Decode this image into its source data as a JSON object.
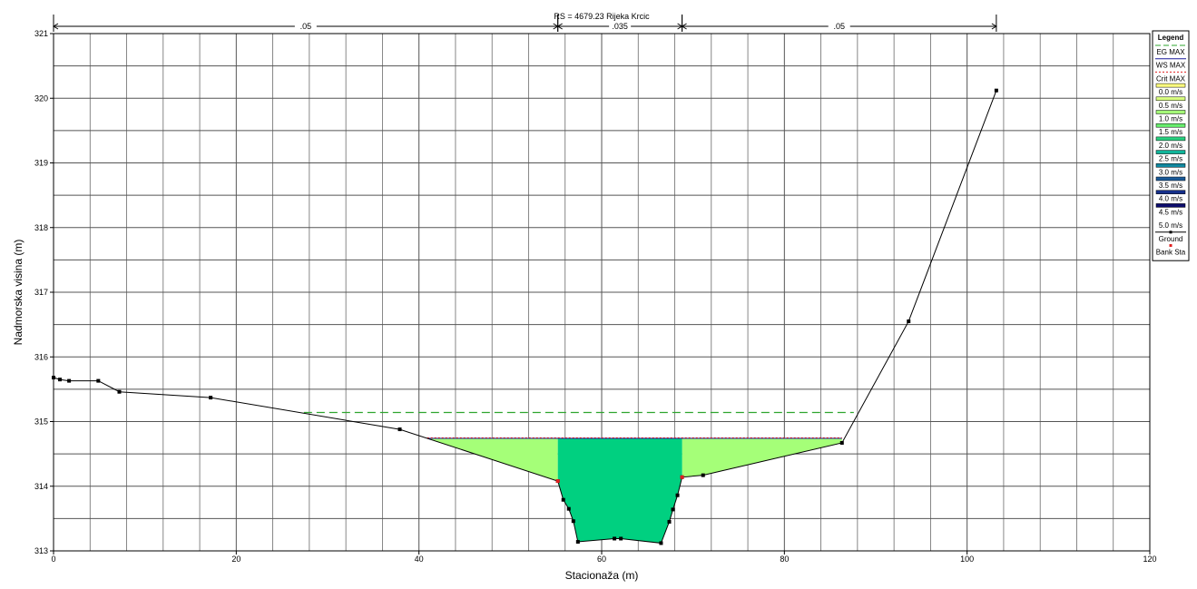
{
  "header": {
    "title": "RS = 4679.23   Rijeka Krcic",
    "mannings": [
      {
        "label": ".05",
        "from": 0,
        "to": 55.2
      },
      {
        "label": ".035",
        "from": 55.2,
        "to": 68.8
      },
      {
        "label": ".05",
        "from": 68.8,
        "to": 103.2
      }
    ]
  },
  "legend": {
    "title": "Legend",
    "items": [
      {
        "label": "EG MAX",
        "kind": "line",
        "color": "#2fa52f",
        "dash": "6,3"
      },
      {
        "label": "WS MAX",
        "kind": "line",
        "color": "#1a1a9a",
        "dash": ""
      },
      {
        "label": "Crit MAX",
        "kind": "line",
        "color": "#e02020",
        "dash": "2,2"
      },
      {
        "label": "0.0 m/s",
        "kind": "swatch",
        "color": "#ffff80"
      },
      {
        "label": "0.5 m/s",
        "kind": "swatch",
        "color": "#d9ff80"
      },
      {
        "label": "1.0 m/s",
        "kind": "swatch",
        "color": "#a5ff78"
      },
      {
        "label": "1.5 m/s",
        "kind": "swatch",
        "color": "#68ee6e"
      },
      {
        "label": "2.0 m/s",
        "kind": "swatch",
        "color": "#28d080"
      },
      {
        "label": "2.5 m/s",
        "kind": "swatch",
        "color": "#10b59a"
      },
      {
        "label": "3.0 m/s",
        "kind": "swatch",
        "color": "#1088a0"
      },
      {
        "label": "3.5 m/s",
        "kind": "swatch",
        "color": "#1a5a98"
      },
      {
        "label": "4.0 m/s",
        "kind": "swatch",
        "color": "#16308a"
      },
      {
        "label": "4.5 m/s",
        "kind": "swatch",
        "color": "#0c0c6c"
      },
      {
        "label": "5.0 m/s",
        "kind": "swatch",
        "color": ""
      },
      {
        "label": "Ground",
        "kind": "ground",
        "color": "#000000"
      },
      {
        "label": "Bank Sta",
        "kind": "bank",
        "color": "#e02020"
      }
    ]
  },
  "chart_data": {
    "type": "line",
    "xlabel": "Stacionaža (m)",
    "ylabel": "Nadmorska visina (m)",
    "xlim": [
      0,
      120
    ],
    "ylim": [
      313,
      321
    ],
    "xticks": [
      0,
      20,
      40,
      60,
      80,
      100,
      120
    ],
    "yticks": [
      313,
      314,
      315,
      316,
      317,
      318,
      319,
      320,
      321
    ],
    "grid": true,
    "legend_position": "right",
    "ground": {
      "name": "Ground",
      "x": [
        0,
        0.7,
        1.7,
        4.9,
        7.2,
        17.2,
        37.9,
        55.2,
        55.8,
        56.4,
        56.9,
        57.4,
        61.4,
        62.1,
        66.5,
        67.4,
        67.8,
        68.3,
        68.8,
        71.1,
        86.3,
        93.6,
        103.2
      ],
      "y": [
        315.68,
        315.65,
        315.63,
        315.63,
        315.46,
        315.37,
        314.88,
        314.08,
        313.79,
        313.65,
        313.46,
        313.14,
        313.19,
        313.19,
        313.12,
        313.45,
        313.64,
        313.86,
        314.14,
        314.17,
        314.67,
        316.55,
        320.12
      ]
    },
    "bank_stations": {
      "name": "Bank Sta",
      "x": [
        55.2,
        68.8
      ],
      "y": [
        314.08,
        314.14
      ]
    },
    "eg_max": {
      "name": "EG MAX",
      "x": [
        27.4,
        87.6
      ],
      "y": [
        315.14,
        315.14
      ]
    },
    "ws_max": {
      "name": "WS MAX",
      "x": [
        40.9,
        86.3
      ],
      "y": [
        314.74,
        314.74
      ]
    },
    "crit_max": {
      "name": "Crit MAX",
      "x": [
        40.9,
        86.3
      ],
      "y": [
        314.75,
        314.75
      ]
    },
    "flow_areas": [
      {
        "name": "left overbank",
        "velocity_color": "#a5ff78",
        "x": [
          40.9,
          55.2,
          55.2,
          37.9
        ],
        "y": [
          314.74,
          314.74,
          314.08,
          314.88
        ]
      },
      {
        "name": "main channel",
        "velocity_color": "#00d080"
      },
      {
        "name": "right overbank",
        "velocity_color": "#a5ff78"
      }
    ]
  }
}
